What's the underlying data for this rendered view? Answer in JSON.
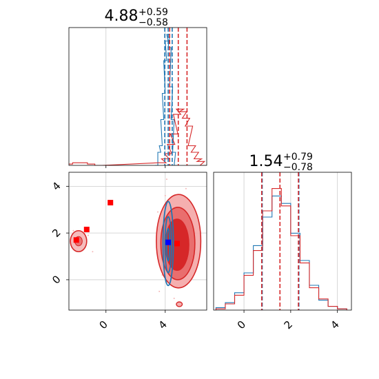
{
  "chart_data": [
    {
      "panel": "top-left",
      "type": "histogram",
      "title_value": "4.88",
      "title_plus": "+0.59",
      "title_minus": "−0.58",
      "xlim": [
        -2.5,
        6.8
      ],
      "grid": true,
      "series": [
        {
          "color": "#1f77b4",
          "x": [
            3.4,
            3.6,
            3.7,
            3.8,
            3.9,
            4.0,
            4.1,
            4.2,
            4.3,
            4.4,
            4.5,
            4.6,
            4.7
          ],
          "y": [
            0.0,
            0.1,
            0.15,
            0.35,
            0.55,
            0.8,
            0.95,
            1.0,
            0.9,
            0.6,
            0.35,
            0.1,
            0.0
          ],
          "quantiles": [
            3.97,
            4.2,
            4.47
          ]
        },
        {
          "color": "#d62728",
          "x": [
            -2.5,
            -2.0,
            -1.5,
            -1.0,
            -0.5,
            3.8,
            4.0,
            4.2,
            4.4,
            4.6,
            4.8,
            5.0,
            5.2,
            5.4,
            5.6,
            5.8,
            6.0,
            6.2,
            6.4,
            6.6
          ],
          "y": [
            0.01,
            0.02,
            0.02,
            0.01,
            0.0,
            0.02,
            0.05,
            0.09,
            0.16,
            0.24,
            0.39,
            0.43,
            0.41,
            0.36,
            0.3,
            0.15,
            0.1,
            0.05,
            0.03,
            0.0
          ],
          "quantiles": [
            4.3,
            4.88,
            5.47
          ]
        }
      ]
    },
    {
      "panel": "bottom-left",
      "type": "contour",
      "xlim": [
        -2.5,
        6.8
      ],
      "ylim": [
        -1.3,
        4.6
      ],
      "xticks": [
        "0",
        "4"
      ],
      "yticks": [
        "0",
        "2",
        "4"
      ],
      "grid": true,
      "red_markers": [
        [
          0.3,
          3.3
        ],
        [
          -1.3,
          2.15
        ],
        [
          -2.0,
          1.7
        ],
        [
          4.8,
          1.55
        ]
      ],
      "blue_markers": [
        [
          4.2,
          1.6
        ]
      ]
    },
    {
      "panel": "bottom-right",
      "type": "histogram",
      "title_value": "1.54",
      "title_plus": "+0.79",
      "title_minus": "−0.78",
      "xlim": [
        -1.3,
        4.6
      ],
      "xticks": [
        "0",
        "2",
        "4"
      ],
      "grid": true,
      "series": [
        {
          "color": "#1f77b4",
          "x": [
            -1.0,
            -0.6,
            -0.2,
            0.2,
            0.6,
            1.0,
            1.4,
            1.8,
            2.2,
            2.6,
            3.0,
            3.4,
            3.8,
            4.2
          ],
          "y": [
            0.02,
            0.06,
            0.14,
            0.3,
            0.52,
            0.75,
            0.92,
            0.86,
            0.62,
            0.4,
            0.2,
            0.08,
            0.03,
            0.01
          ],
          "quantiles": [
            0.78,
            2.35
          ]
        },
        {
          "color": "#d62728",
          "x": [
            -1.0,
            -0.6,
            -0.2,
            0.2,
            0.6,
            1.0,
            1.4,
            1.8,
            2.2,
            2.6,
            3.0,
            3.4,
            3.8,
            4.2
          ],
          "y": [
            0.01,
            0.05,
            0.12,
            0.28,
            0.48,
            0.8,
            0.98,
            0.84,
            0.6,
            0.38,
            0.18,
            0.09,
            0.03,
            0.01
          ],
          "quantiles": [
            0.76,
            1.54,
            2.33
          ]
        }
      ]
    }
  ]
}
